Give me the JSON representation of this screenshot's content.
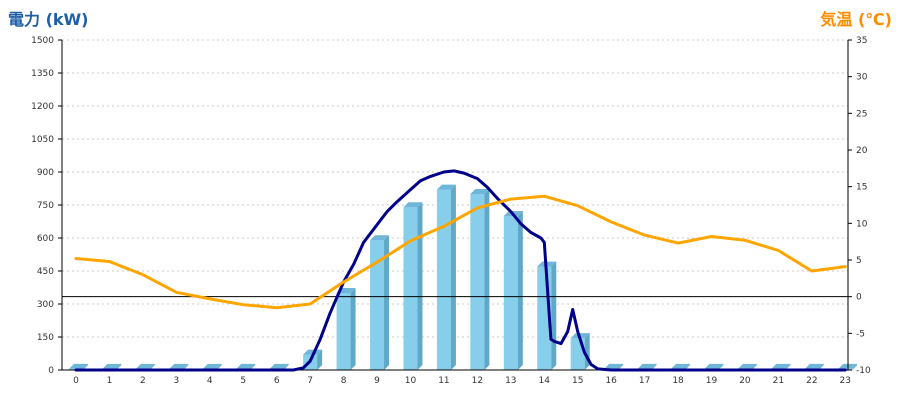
{
  "chart_data": {
    "type": "bar",
    "title_left": "電力 (kW)",
    "title_right": "気温 (℃)",
    "xlabel": "",
    "ylabel_left": "電力 (kW)",
    "ylabel_right": "気温 (℃)",
    "categories": [
      "0",
      "1",
      "2",
      "3",
      "4",
      "5",
      "6",
      "7",
      "8",
      "9",
      "10",
      "11",
      "12",
      "13",
      "14",
      "15",
      "16",
      "17",
      "18",
      "19",
      "20",
      "21",
      "22",
      "23"
    ],
    "ylim_left": [
      0,
      1500
    ],
    "yticks_left": [
      "0",
      "150",
      "300",
      "450",
      "600",
      "750",
      "900",
      "1050",
      "1200",
      "1350",
      "1500"
    ],
    "ylim_right": [
      -10,
      35
    ],
    "yticks_right": [
      "-10",
      "-5",
      "0",
      "5",
      "10",
      "15",
      "20",
      "25",
      "30",
      "35"
    ],
    "grid": true,
    "colors": {
      "title_left": "#1f5fa6",
      "title_right": "#ff8c00",
      "bar_front": "#87ceeb",
      "bar_side": "#5fa8c8",
      "bar_top": "#6fb6d8",
      "power_line": "#00008b",
      "temp_line": "#ffa500",
      "zero_line": "#000000",
      "grid": "#c8c8c8"
    },
    "bars": {
      "name": "",
      "axis": "left",
      "values": [
        5,
        5,
        5,
        5,
        5,
        5,
        5,
        70,
        350,
        590,
        740,
        820,
        800,
        700,
        470,
        145,
        5,
        5,
        5,
        5,
        5,
        5,
        5,
        5
      ]
    },
    "power_line": {
      "name": "",
      "axis": "left",
      "x": [
        0,
        1,
        2,
        3,
        4,
        5,
        6,
        6.5,
        6.8,
        7.0,
        7.3,
        7.6,
        8.0,
        8.3,
        8.6,
        9.0,
        9.3,
        9.6,
        10.0,
        10.3,
        10.6,
        11.0,
        11.3,
        11.6,
        12.0,
        12.3,
        12.6,
        13.0,
        13.3,
        13.6,
        13.9,
        14.0,
        14.1,
        14.2,
        14.3,
        14.5,
        14.7,
        14.85,
        15.0,
        15.2,
        15.4,
        15.6,
        16.0,
        17,
        18,
        19,
        20,
        21,
        22,
        23
      ],
      "values": [
        0,
        0,
        0,
        0,
        0,
        0,
        0,
        0,
        10,
        40,
        140,
        260,
        400,
        480,
        580,
        660,
        720,
        765,
        820,
        860,
        880,
        900,
        905,
        895,
        870,
        830,
        780,
        720,
        665,
        625,
        600,
        580,
        360,
        140,
        130,
        120,
        175,
        275,
        175,
        80,
        25,
        5,
        0,
        0,
        0,
        0,
        0,
        0,
        0,
        0
      ]
    },
    "temp_line": {
      "name": "",
      "axis": "right",
      "x": [
        0,
        1,
        2,
        3,
        4,
        5,
        6,
        7,
        8,
        9,
        10,
        11,
        12,
        13,
        14,
        15,
        16,
        17,
        18,
        19,
        20,
        21,
        22,
        23
      ],
      "values": [
        5.2,
        4.8,
        3.0,
        0.6,
        -0.3,
        -1.1,
        -1.5,
        -1.0,
        2.0,
        4.7,
        7.6,
        9.6,
        12.1,
        13.3,
        13.7,
        12.4,
        10.2,
        8.4,
        7.3,
        8.2,
        7.7,
        6.3,
        3.5,
        4.1
      ]
    }
  }
}
